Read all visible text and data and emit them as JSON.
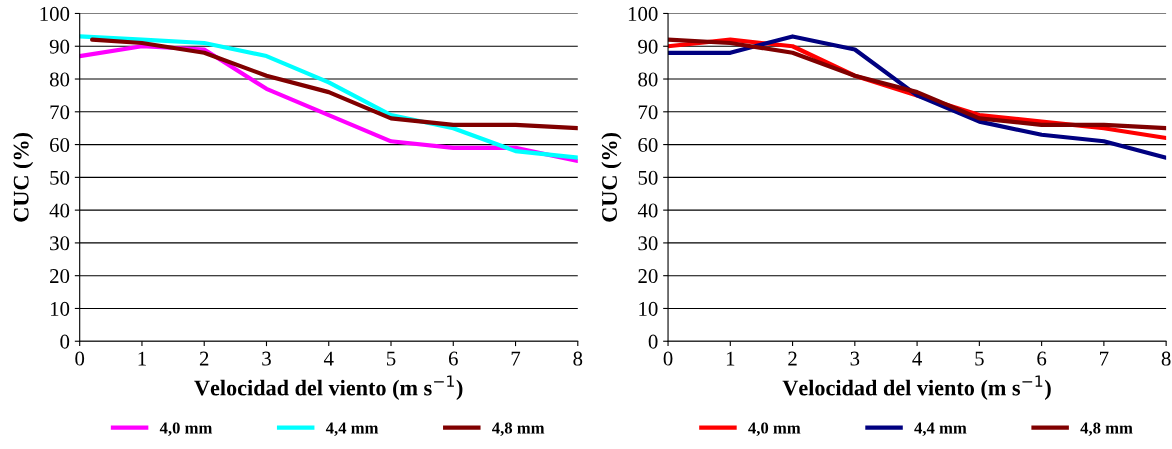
{
  "chart_data": [
    {
      "type": "line",
      "xlabel": "Velocidad del viento (m s$^{−1}$)",
      "ylabel": "CUC (%)",
      "xlim": [
        0,
        8
      ],
      "xticks": [
        0,
        1,
        2,
        3,
        4,
        5,
        6,
        7,
        8
      ],
      "ylim": [
        0,
        100
      ],
      "yticks": [
        0,
        10,
        20,
        30,
        40,
        50,
        60,
        70,
        80,
        90,
        100
      ],
      "grid": "y",
      "legend": "bottom",
      "marker": "none",
      "line_style": "solid",
      "series": [
        {
          "name": "4,0 mm",
          "color": "#ff00ff",
          "x": [
            0,
            1,
            2,
            3,
            4,
            5,
            6,
            7,
            8
          ],
          "values": [
            87,
            90,
            89,
            77,
            69,
            61,
            59,
            59,
            55
          ]
        },
        {
          "name": "4,4 mm",
          "color": "#00ffff",
          "x": [
            0,
            1,
            2,
            3,
            4,
            5,
            6,
            7,
            8
          ],
          "values": [
            93,
            92,
            91,
            87,
            79,
            69,
            65,
            58,
            56
          ]
        },
        {
          "name": "4,8 mm",
          "color": "#800000",
          "x": [
            0.2,
            1,
            2,
            3,
            4,
            5,
            6,
            7,
            8
          ],
          "values": [
            92,
            91,
            88,
            81,
            76,
            68,
            66,
            66,
            65
          ]
        }
      ]
    },
    {
      "type": "line",
      "xlabel": "Velocidad del viento (m s$^{−1}$)",
      "ylabel": "CUC (%)",
      "xlim": [
        0,
        8
      ],
      "xticks": [
        0,
        1,
        2,
        3,
        4,
        5,
        6,
        7,
        8
      ],
      "ylim": [
        0,
        100
      ],
      "yticks": [
        0,
        10,
        20,
        30,
        40,
        50,
        60,
        70,
        80,
        90,
        100
      ],
      "grid": "y",
      "legend": "bottom",
      "marker": "none",
      "line_style": "solid",
      "series": [
        {
          "name": "4,0 mm",
          "color": "#ff0000",
          "x": [
            0,
            1,
            2,
            3,
            4,
            5,
            6,
            7,
            8
          ],
          "values": [
            90,
            92,
            90,
            81,
            75,
            69,
            67,
            65,
            62
          ]
        },
        {
          "name": "4,4 mm",
          "color": "#000080",
          "x": [
            0,
            1,
            2,
            3,
            4,
            5,
            6,
            7,
            8
          ],
          "values": [
            88,
            88,
            93,
            89,
            75,
            67,
            63,
            61,
            56
          ]
        },
        {
          "name": "4,8 mm",
          "color": "#800000",
          "x": [
            0,
            1,
            2,
            3,
            4,
            5,
            6,
            7,
            8
          ],
          "values": [
            92,
            91,
            88,
            81,
            76,
            68,
            66,
            66,
            65
          ]
        }
      ]
    }
  ]
}
